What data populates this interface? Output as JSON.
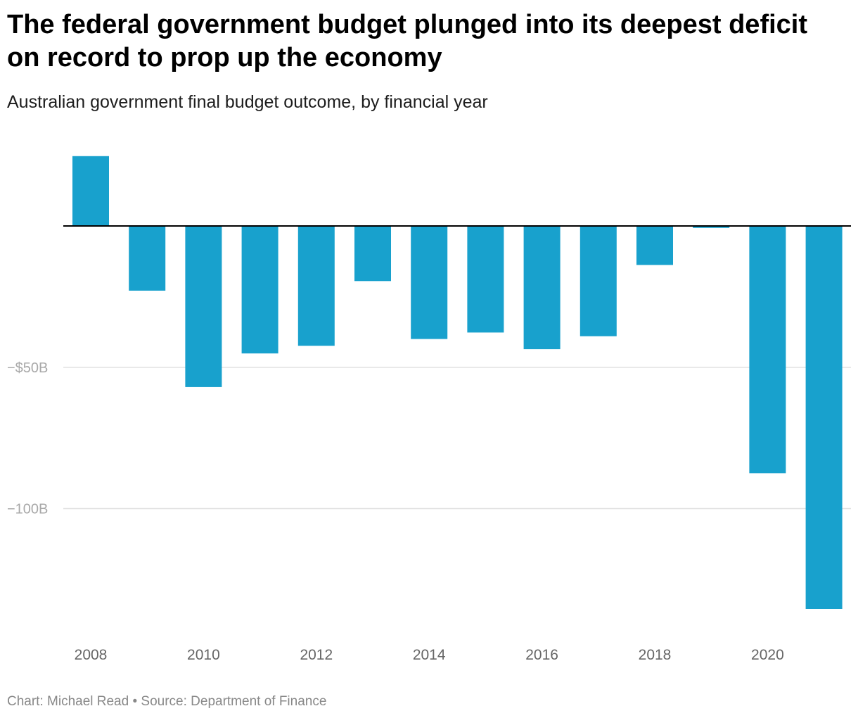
{
  "header": {
    "title": "The federal government budget plunged into its deepest deficit on record to prop up the economy",
    "subtitle": "Australian government final budget outcome, by financial year"
  },
  "footer": {
    "credit": "Chart: Michael Read • Source: Department of Finance"
  },
  "colors": {
    "bar": "#18a1cd",
    "grid": "#e0e0e0",
    "zero_line": "#000000",
    "tick_text": "#a8a8a8",
    "x_tick_text": "#666666"
  },
  "chart_data": {
    "type": "bar",
    "title": "The federal government budget plunged into its deepest deficit on record to prop up the economy",
    "subtitle": "Australian government final budget outcome, by financial year",
    "xlabel": "",
    "ylabel": "",
    "x": [
      2008,
      2009,
      2010,
      2011,
      2012,
      2013,
      2014,
      2015,
      2016,
      2017,
      2018,
      2019,
      2020,
      2021
    ],
    "values": [
      24.7,
      -22.9,
      -57.0,
      -45.1,
      -42.4,
      -19.5,
      -40.0,
      -37.7,
      -43.6,
      -39.0,
      -13.8,
      -0.7,
      -87.5,
      -135.5
    ],
    "units": "$ billion",
    "ylim": [
      -142,
      29
    ],
    "y_ticks": [
      {
        "value": -50,
        "label": "−$50B"
      },
      {
        "value": -100,
        "label": "−100B"
      }
    ],
    "x_ticks": [
      "2008",
      "2010",
      "2012",
      "2014",
      "2016",
      "2018",
      "2020"
    ],
    "grid": true,
    "legend": "none"
  }
}
